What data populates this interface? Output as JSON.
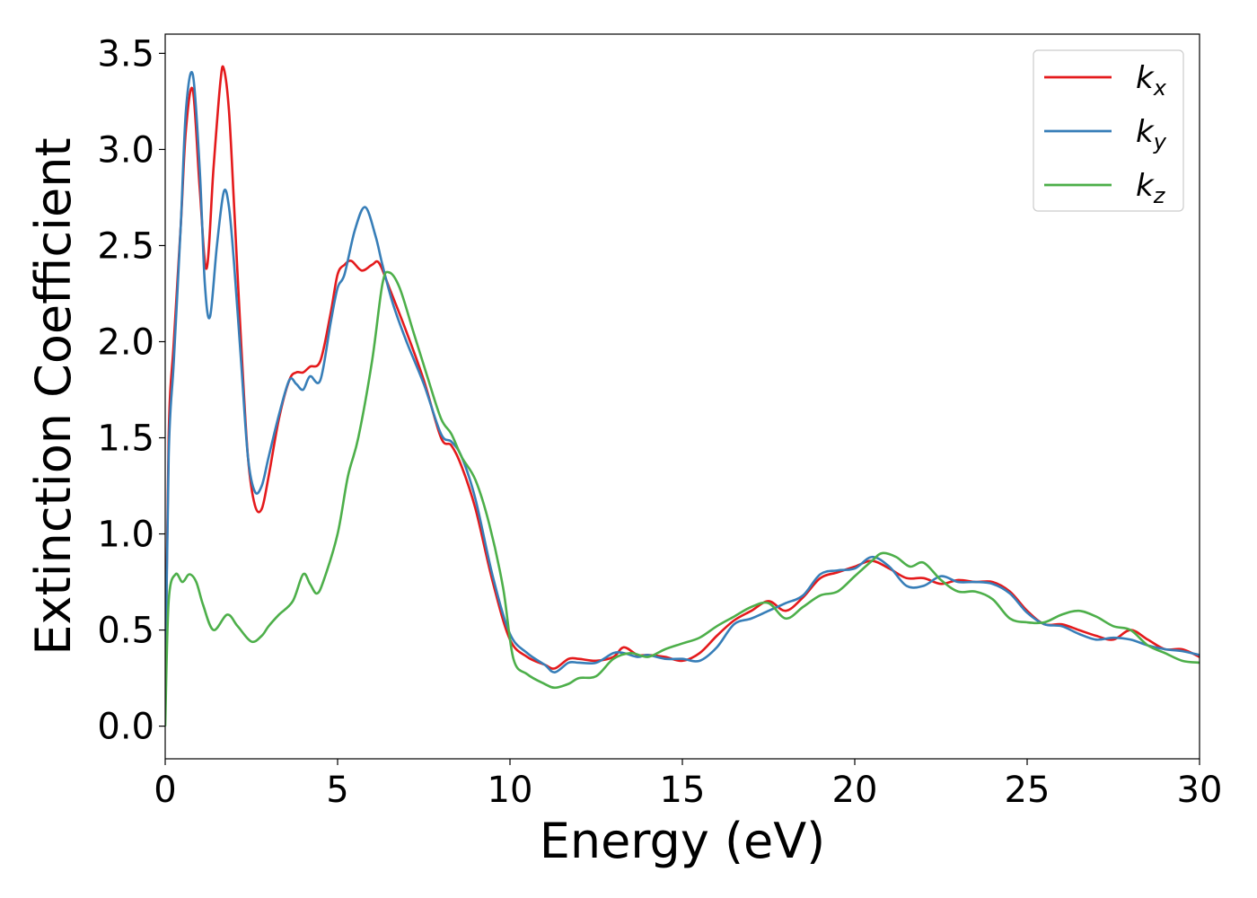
{
  "chart_data": {
    "type": "line",
    "xlabel": "Energy (eV)",
    "ylabel": "Extinction Coefficient",
    "xlim": [
      0,
      30
    ],
    "ylim": [
      -0.17,
      3.6
    ],
    "xticks": [
      0,
      5,
      10,
      15,
      20,
      25,
      30
    ],
    "xtick_labels": [
      "0",
      "5",
      "10",
      "15",
      "20",
      "25",
      "30"
    ],
    "yticks": [
      0.0,
      0.5,
      1.0,
      1.5,
      2.0,
      2.5,
      3.0,
      3.5
    ],
    "ytick_labels": [
      "0.0",
      "0.5",
      "1.0",
      "1.5",
      "2.0",
      "2.5",
      "3.0",
      "3.5"
    ],
    "grid": false,
    "legend_position": "top-right",
    "series": [
      {
        "name": "k",
        "subscript": "x",
        "color": "#e41a1c",
        "x": [
          0,
          0.1,
          0.25,
          0.45,
          0.6,
          0.8,
          1.0,
          1.2,
          1.4,
          1.6,
          1.7,
          1.85,
          2.0,
          2.2,
          2.4,
          2.6,
          2.8,
          3.0,
          3.3,
          3.6,
          3.8,
          4.0,
          4.2,
          4.5,
          4.8,
          5.0,
          5.2,
          5.4,
          5.7,
          6.0,
          6.2,
          6.5,
          7.0,
          7.5,
          8.0,
          8.3,
          8.6,
          9.0,
          9.5,
          10.0,
          10.5,
          11.0,
          11.3,
          11.7,
          12.0,
          12.5,
          13.0,
          13.3,
          13.7,
          14.0,
          14.5,
          15.0,
          15.5,
          16.0,
          16.5,
          17.0,
          17.5,
          18.0,
          18.5,
          19.0,
          19.5,
          20.0,
          20.5,
          21.0,
          21.5,
          22.0,
          22.5,
          23.0,
          23.5,
          24.0,
          24.5,
          25.0,
          25.5,
          26.0,
          26.5,
          27.0,
          27.5,
          28.0,
          28.5,
          29.0,
          29.5,
          30.0
        ],
        "values": [
          0.05,
          1.5,
          2.0,
          2.6,
          3.1,
          3.31,
          2.8,
          2.38,
          2.9,
          3.35,
          3.42,
          3.2,
          2.7,
          2.0,
          1.4,
          1.15,
          1.13,
          1.3,
          1.6,
          1.8,
          1.84,
          1.84,
          1.87,
          1.9,
          2.15,
          2.35,
          2.4,
          2.42,
          2.37,
          2.4,
          2.41,
          2.28,
          2.05,
          1.8,
          1.5,
          1.46,
          1.35,
          1.13,
          0.75,
          0.45,
          0.36,
          0.32,
          0.3,
          0.35,
          0.35,
          0.34,
          0.36,
          0.41,
          0.37,
          0.37,
          0.36,
          0.34,
          0.38,
          0.47,
          0.55,
          0.6,
          0.65,
          0.6,
          0.67,
          0.77,
          0.8,
          0.83,
          0.86,
          0.82,
          0.77,
          0.77,
          0.74,
          0.76,
          0.75,
          0.75,
          0.7,
          0.6,
          0.53,
          0.53,
          0.5,
          0.47,
          0.45,
          0.5,
          0.45,
          0.4,
          0.4,
          0.36
        ]
      },
      {
        "name": "k",
        "subscript": "y",
        "color": "#377eb8",
        "x": [
          0,
          0.1,
          0.25,
          0.45,
          0.6,
          0.8,
          1.0,
          1.15,
          1.3,
          1.5,
          1.7,
          1.85,
          2.0,
          2.2,
          2.4,
          2.6,
          2.8,
          3.0,
          3.3,
          3.6,
          3.8,
          4.0,
          4.2,
          4.5,
          4.8,
          5.0,
          5.2,
          5.5,
          5.8,
          6.1,
          6.3,
          6.6,
          7.0,
          7.5,
          8.0,
          8.3,
          8.6,
          9.0,
          9.5,
          10.0,
          10.5,
          11.0,
          11.3,
          11.7,
          12.0,
          12.5,
          13.0,
          13.3,
          13.7,
          14.0,
          14.5,
          15.0,
          15.5,
          16.0,
          16.5,
          17.0,
          17.5,
          18.0,
          18.5,
          19.0,
          19.5,
          20.0,
          20.5,
          21.0,
          21.5,
          22.0,
          22.5,
          23.0,
          23.5,
          24.0,
          24.5,
          25.0,
          25.5,
          26.0,
          26.5,
          27.0,
          27.5,
          28.0,
          28.5,
          29.0,
          29.5,
          30.0
        ],
        "values": [
          0.05,
          1.4,
          1.9,
          2.6,
          3.2,
          3.39,
          2.9,
          2.3,
          2.13,
          2.5,
          2.78,
          2.7,
          2.4,
          1.9,
          1.4,
          1.22,
          1.25,
          1.4,
          1.62,
          1.8,
          1.78,
          1.75,
          1.82,
          1.8,
          2.1,
          2.28,
          2.35,
          2.58,
          2.7,
          2.55,
          2.4,
          2.2,
          2.0,
          1.78,
          1.52,
          1.48,
          1.4,
          1.18,
          0.78,
          0.48,
          0.38,
          0.32,
          0.28,
          0.33,
          0.33,
          0.33,
          0.38,
          0.38,
          0.36,
          0.37,
          0.35,
          0.35,
          0.34,
          0.41,
          0.53,
          0.56,
          0.6,
          0.64,
          0.68,
          0.79,
          0.81,
          0.82,
          0.88,
          0.83,
          0.73,
          0.73,
          0.78,
          0.75,
          0.75,
          0.74,
          0.69,
          0.59,
          0.53,
          0.52,
          0.48,
          0.45,
          0.46,
          0.45,
          0.42,
          0.4,
          0.39,
          0.37
        ]
      },
      {
        "name": "k",
        "subscript": "z",
        "color": "#4daf4a",
        "x": [
          0,
          0.1,
          0.3,
          0.5,
          0.7,
          0.9,
          1.1,
          1.4,
          1.8,
          2.1,
          2.5,
          2.8,
          3.0,
          3.3,
          3.7,
          4.0,
          4.2,
          4.4,
          4.6,
          5.0,
          5.3,
          5.6,
          6.0,
          6.3,
          6.5,
          6.8,
          7.2,
          7.6,
          8.0,
          8.3,
          8.6,
          9.0,
          9.4,
          9.8,
          10.1,
          10.5,
          11.0,
          11.3,
          11.7,
          12.0,
          12.5,
          13.0,
          13.5,
          14.0,
          14.5,
          15.0,
          15.5,
          16.0,
          16.5,
          17.0,
          17.5,
          18.0,
          18.5,
          19.0,
          19.5,
          20.0,
          20.5,
          20.8,
          21.2,
          21.6,
          22.0,
          22.5,
          23.0,
          23.5,
          24.0,
          24.5,
          25.0,
          25.5,
          26.0,
          26.5,
          27.0,
          27.5,
          28.0,
          28.5,
          29.0,
          29.5,
          30.0
        ],
        "values": [
          0.0,
          0.65,
          0.79,
          0.75,
          0.79,
          0.75,
          0.63,
          0.5,
          0.58,
          0.52,
          0.44,
          0.47,
          0.52,
          0.58,
          0.65,
          0.79,
          0.74,
          0.69,
          0.76,
          1.0,
          1.3,
          1.5,
          1.9,
          2.3,
          2.36,
          2.28,
          2.05,
          1.82,
          1.6,
          1.52,
          1.4,
          1.28,
          1.05,
          0.72,
          0.35,
          0.27,
          0.22,
          0.2,
          0.22,
          0.25,
          0.26,
          0.35,
          0.38,
          0.36,
          0.4,
          0.43,
          0.46,
          0.52,
          0.57,
          0.62,
          0.64,
          0.56,
          0.62,
          0.68,
          0.7,
          0.78,
          0.86,
          0.9,
          0.88,
          0.83,
          0.85,
          0.76,
          0.7,
          0.7,
          0.66,
          0.56,
          0.54,
          0.54,
          0.58,
          0.6,
          0.57,
          0.52,
          0.5,
          0.42,
          0.38,
          0.34,
          0.33
        ]
      }
    ]
  }
}
